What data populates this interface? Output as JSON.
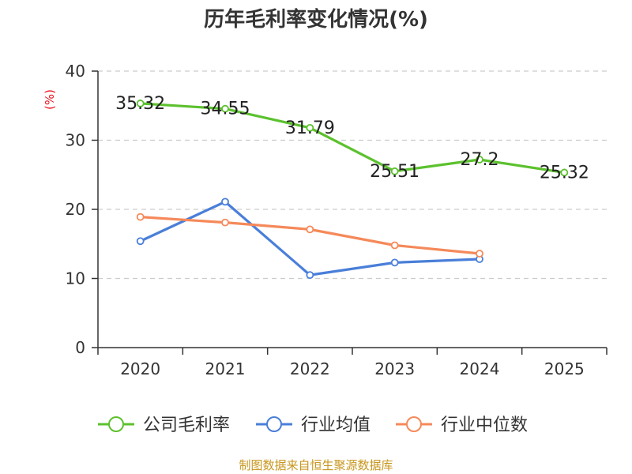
{
  "chart_data": {
    "type": "line",
    "title": "历年毛利率变化情况(%)",
    "ylabel": "(%)",
    "xlabel": "",
    "ylim": [
      0,
      40
    ],
    "yticks": [
      0,
      10,
      20,
      30,
      40
    ],
    "grid": true,
    "legend_position": "bottom",
    "categories": [
      "2020",
      "2021",
      "2022",
      "2023",
      "2024",
      "2025"
    ],
    "series": [
      {
        "name": "公司毛利率",
        "color": "#5cc12e",
        "values": [
          35.32,
          34.55,
          31.79,
          25.51,
          27.2,
          25.32
        ],
        "labels": [
          "35.32",
          "34.55",
          "31.79",
          "25.51",
          "27.2",
          "25.32"
        ],
        "show_labels": true
      },
      {
        "name": "行业均值",
        "color": "#4a7fd9",
        "values": [
          15.4,
          21.1,
          10.5,
          12.3,
          12.8,
          null
        ],
        "show_labels": false
      },
      {
        "name": "行业中位数",
        "color": "#f5895a",
        "values": [
          18.9,
          18.1,
          17.1,
          14.8,
          13.6,
          null
        ],
        "show_labels": false
      }
    ],
    "source": "制图数据来自恒生聚源数据库"
  }
}
